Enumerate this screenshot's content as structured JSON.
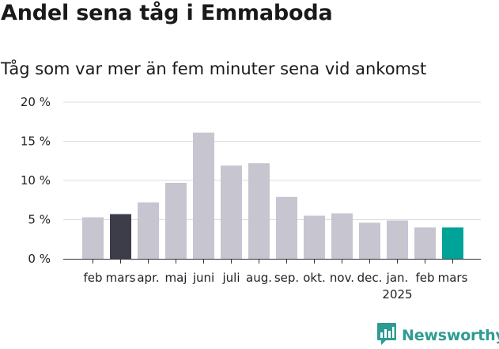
{
  "title": "Andel sena tåg i Emmaboda",
  "subtitle": "Tåg som var mer än fem minuter sena vid ankomst",
  "brand": {
    "name": "Newsworthy",
    "color": "#2e9c92",
    "icon": "newsworthy-logo-icon"
  },
  "colors": {
    "default_bar": "#c7c5d0",
    "previous_year_highlight": "#3d3c49",
    "current_highlight": "#00a398",
    "grid": "#dddddd",
    "axis": "#333333"
  },
  "chart_data": {
    "type": "bar",
    "title": "Andel sena tåg i Emmaboda",
    "subtitle": "Tåg som var mer än fem minuter sena vid ankomst",
    "xlabel": "",
    "ylabel": "",
    "ylim": [
      0,
      20
    ],
    "yticks": [
      0,
      5,
      10,
      15,
      20
    ],
    "ytick_labels": [
      "0 %",
      "5 %",
      "10 %",
      "15 %",
      "20 %"
    ],
    "grid": true,
    "legend": "none",
    "categories": [
      "feb",
      "mars",
      "apr.",
      "maj",
      "juni",
      "juli",
      "aug.",
      "sep.",
      "okt.",
      "nov.",
      "dec.",
      "jan.",
      "feb",
      "mars"
    ],
    "values": [
      5.3,
      5.7,
      7.2,
      9.7,
      16.1,
      11.9,
      12.2,
      7.9,
      5.5,
      5.8,
      4.6,
      4.9,
      4.0,
      4.0
    ],
    "highlight": {
      "mars_previous_year": 1,
      "mars_current": 13
    },
    "year_label": {
      "text": "2025",
      "category_index": 11
    }
  }
}
